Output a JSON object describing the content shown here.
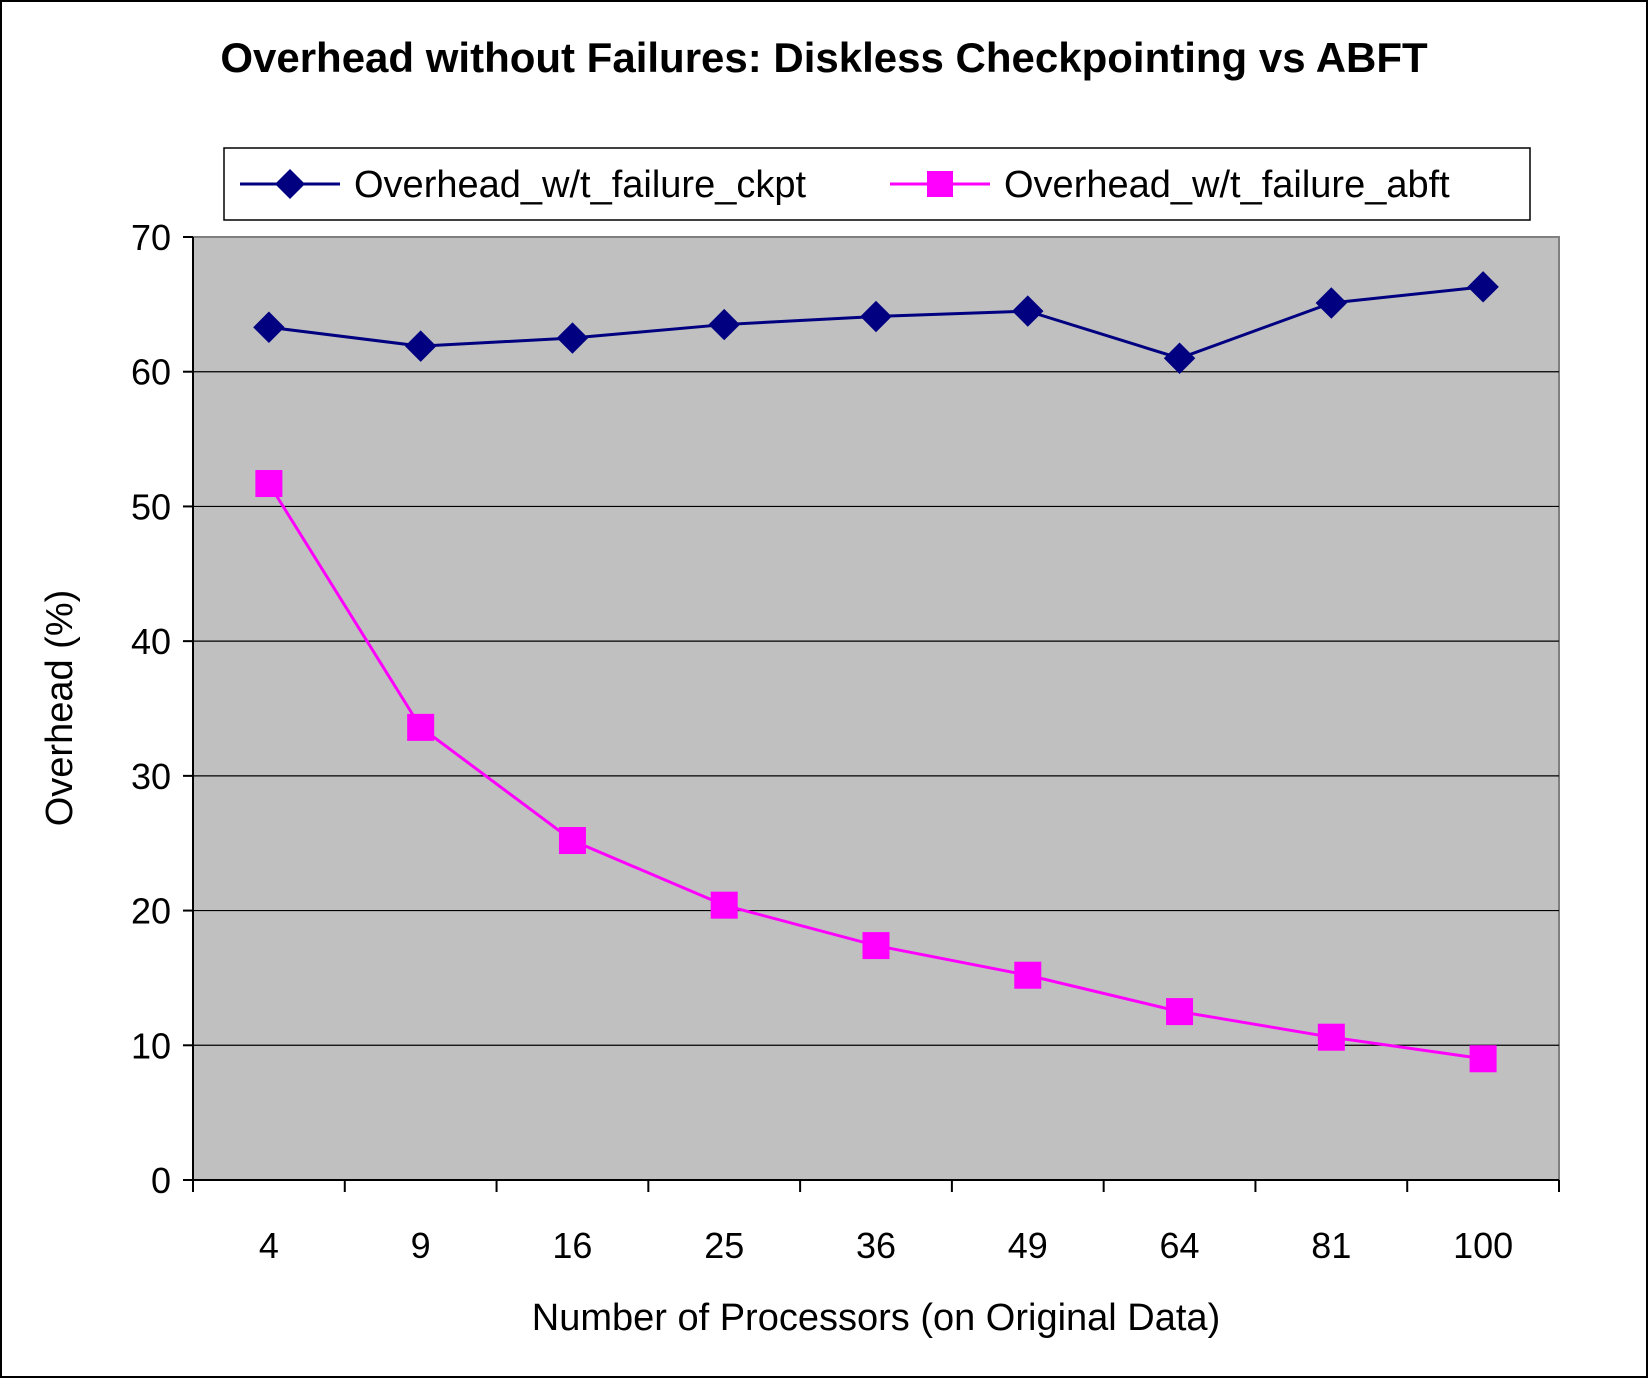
{
  "chart_data": {
    "type": "line",
    "title": "Overhead without Failures: Diskless Checkpointing vs ABFT",
    "xlabel": "Number of Processors (on Original Data)",
    "ylabel": "Overhead (%)",
    "categories": [
      "4",
      "9",
      "16",
      "25",
      "36",
      "49",
      "64",
      "81",
      "100"
    ],
    "ylim": [
      0,
      70
    ],
    "yticks": [
      0,
      10,
      20,
      30,
      40,
      50,
      60,
      70
    ],
    "grid": true,
    "legend": "top",
    "plot_background": "#c0c0c0",
    "series": [
      {
        "name": "Overhead_w/t_failure_ckpt",
        "values": [
          63.3,
          61.9,
          62.5,
          63.5,
          64.1,
          64.5,
          61.0,
          65.1,
          66.3
        ],
        "color": "#000080",
        "marker": "diamond"
      },
      {
        "name": "Overhead_w/t_failure_abft",
        "values": [
          51.7,
          33.6,
          25.2,
          20.4,
          17.4,
          15.2,
          12.5,
          10.6,
          9.0
        ],
        "color": "#ff00ff",
        "marker": "square"
      }
    ]
  }
}
